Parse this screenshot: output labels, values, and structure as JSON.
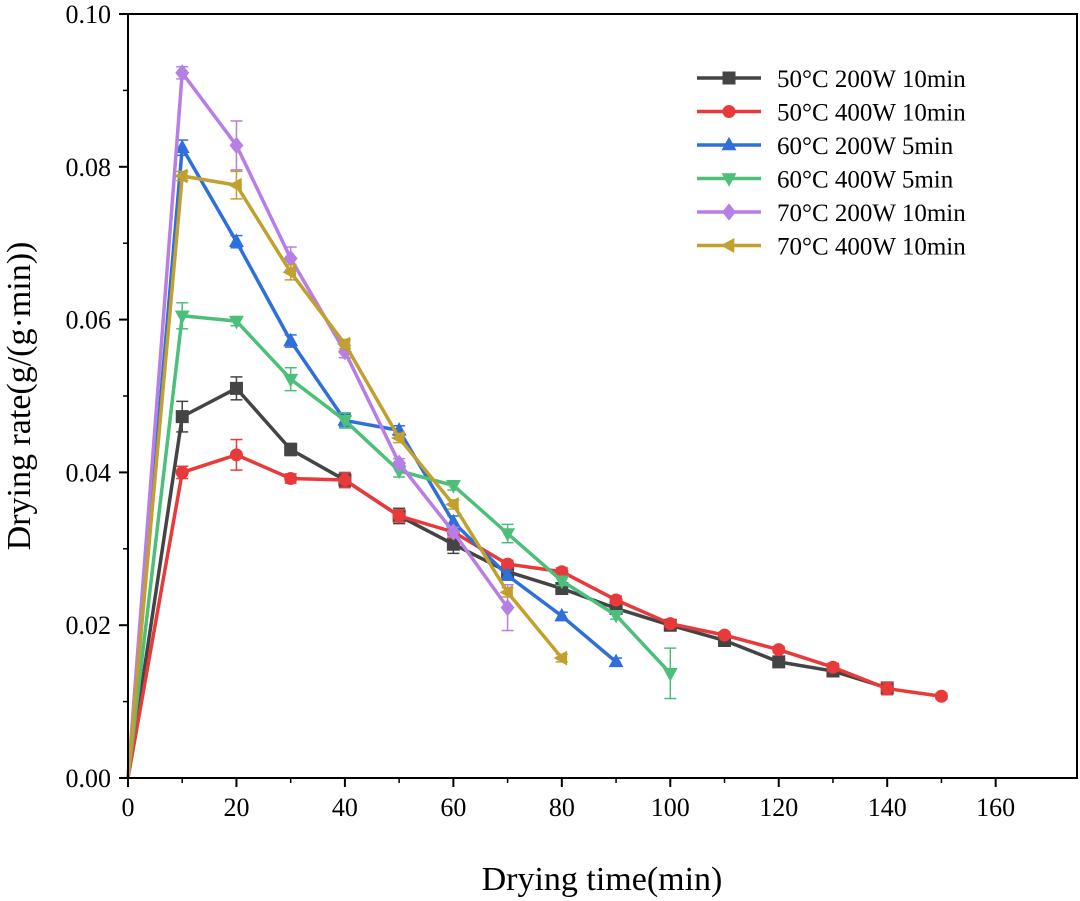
{
  "chart_data": {
    "type": "line",
    "title": "",
    "xlabel": "Drying time(min)",
    "ylabel": "Drying rate(g/(g·min))",
    "xlim": [
      0,
      175
    ],
    "ylim": [
      0,
      0.1
    ],
    "xticks": [
      0,
      20,
      40,
      60,
      80,
      100,
      120,
      140,
      160
    ],
    "yticks": [
      0.0,
      0.02,
      0.04,
      0.06,
      0.08,
      0.1
    ],
    "xtick_labels": [
      "0",
      "20",
      "40",
      "60",
      "80",
      "100",
      "120",
      "140",
      "160"
    ],
    "ytick_labels": [
      "0.00",
      "0.02",
      "0.04",
      "0.06",
      "0.08",
      "0.10"
    ],
    "grid": false,
    "legend_position": "top-right",
    "series": [
      {
        "name": "50°C 200W 10min",
        "color": "#444444",
        "marker": "square",
        "x": [
          0,
          10,
          20,
          30,
          40,
          50,
          60,
          70,
          80,
          90,
          100,
          110,
          120,
          130,
          140
        ],
        "y": [
          0,
          0.0473,
          0.051,
          0.043,
          0.039,
          0.0343,
          0.0306,
          0.027,
          0.0248,
          0.0222,
          0.02,
          0.018,
          0.0152,
          0.014,
          0.0118
        ],
        "err": [
          0,
          0.002,
          0.0015,
          0.0008,
          0.0008,
          0.001,
          0.0012,
          0.0006,
          0.0006,
          0.0006,
          0.0005,
          0.0005,
          0.0005,
          0.0005,
          0.0006
        ]
      },
      {
        "name": "50°C 400W 10min",
        "color": "#e83a3a",
        "marker": "circle",
        "x": [
          0,
          10,
          20,
          30,
          40,
          50,
          60,
          70,
          80,
          90,
          100,
          110,
          120,
          130,
          140,
          150
        ],
        "y": [
          0,
          0.04,
          0.0423,
          0.0392,
          0.039,
          0.0343,
          0.0322,
          0.028,
          0.027,
          0.0233,
          0.0202,
          0.0187,
          0.0168,
          0.0145,
          0.0117,
          0.0107
        ],
        "err": [
          0,
          0.0008,
          0.002,
          0.0006,
          0.001,
          0.0008,
          0.0008,
          0.0005,
          0.0005,
          0.0005,
          0.0004,
          0.0004,
          0.0004,
          0.0005,
          0.0008,
          0.0004
        ]
      },
      {
        "name": "60°C 200W 5min",
        "color": "#2e6fd8",
        "marker": "triangle-up",
        "x": [
          0,
          10,
          20,
          30,
          40,
          50,
          60,
          70,
          80,
          90
        ],
        "y": [
          0,
          0.0825,
          0.0702,
          0.0572,
          0.0468,
          0.0455,
          0.0335,
          0.0265,
          0.0212,
          0.0152
        ],
        "err": [
          0,
          0.001,
          0.0008,
          0.0008,
          0.0008,
          0.0006,
          0.0008,
          0.0006,
          0.0005,
          0.0005
        ]
      },
      {
        "name": "60°C 400W 5min",
        "color": "#4cc07a",
        "marker": "triangle-down",
        "x": [
          0,
          10,
          20,
          30,
          40,
          50,
          60,
          70,
          80,
          90,
          100
        ],
        "y": [
          0,
          0.0605,
          0.0598,
          0.0522,
          0.0468,
          0.0402,
          0.0383,
          0.032,
          0.0258,
          0.0213,
          0.0137
        ],
        "err": [
          0,
          0.0017,
          0.0006,
          0.0015,
          0.001,
          0.0008,
          0.0006,
          0.0012,
          0.0006,
          0.0005,
          0.0033
        ]
      },
      {
        "name": "70°C 200W 10min",
        "color": "#b77ee6",
        "marker": "diamond",
        "x": [
          0,
          10,
          20,
          30,
          40,
          50,
          60,
          70
        ],
        "y": [
          0,
          0.0923,
          0.0828,
          0.068,
          0.0558,
          0.0412,
          0.0322,
          0.0223
        ],
        "err": [
          0,
          0.0008,
          0.0032,
          0.0015,
          0.0008,
          0.0006,
          0.0006,
          0.003
        ]
      },
      {
        "name": "70°C 400W 10min",
        "color": "#c2a02e",
        "marker": "triangle-left",
        "x": [
          0,
          10,
          20,
          30,
          40,
          50,
          60,
          70,
          80
        ],
        "y": [
          0,
          0.0788,
          0.0776,
          0.0662,
          0.0568,
          0.0445,
          0.0358,
          0.0243,
          0.0157
        ],
        "err": [
          0,
          0.0006,
          0.0018,
          0.001,
          0.0006,
          0.0006,
          0.0006,
          0.0006,
          0.0005
        ]
      }
    ]
  }
}
